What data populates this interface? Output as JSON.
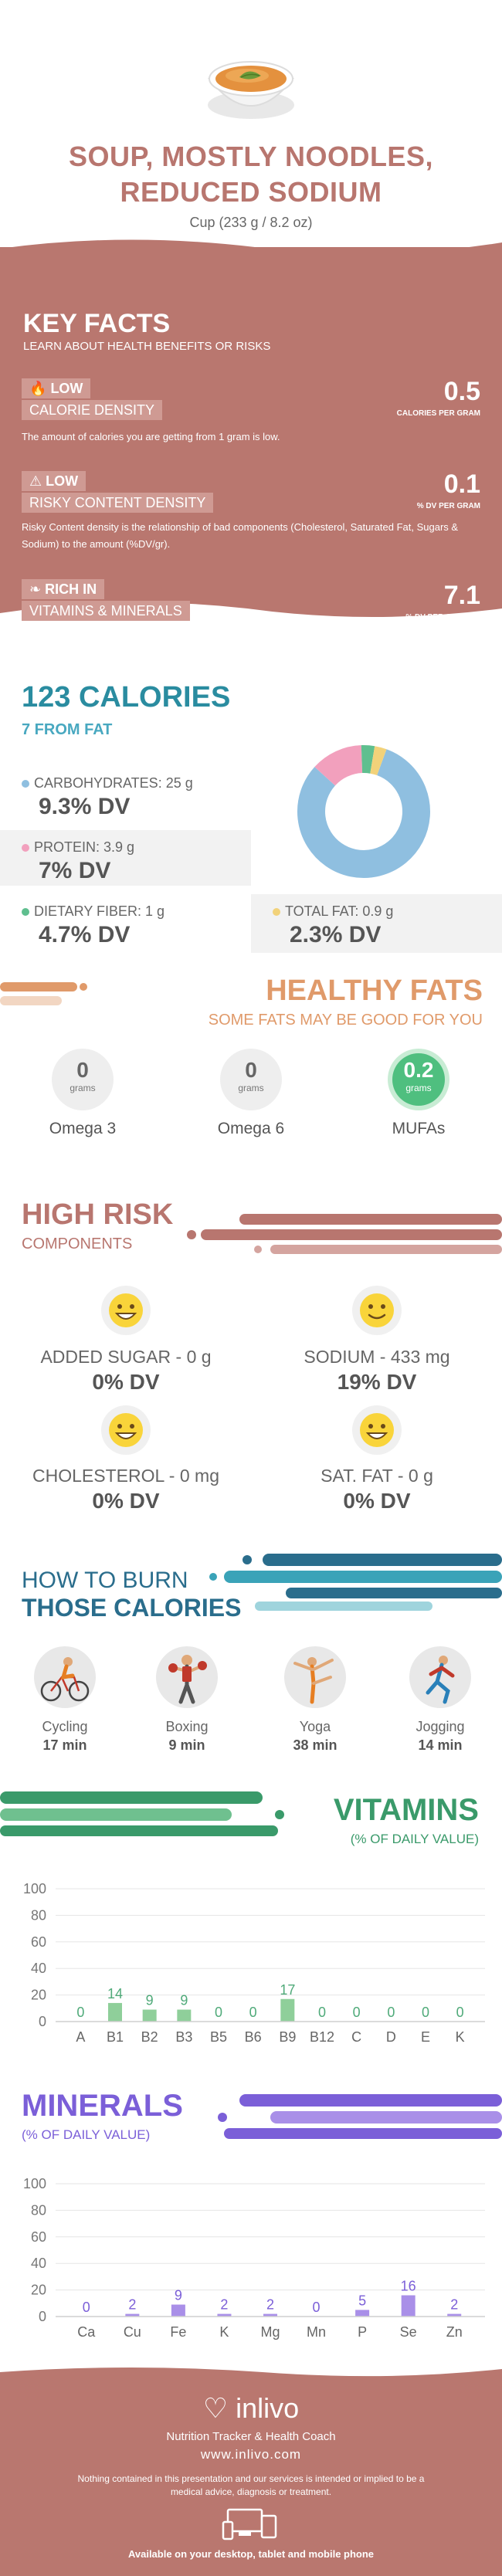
{
  "header": {
    "title_line1": "SOUP, MOSTLY NOODLES,",
    "title_line2": "REDUCED SODIUM",
    "serving": "Cup (233 g / 8.2 oz)"
  },
  "key_facts": {
    "heading": "KEY FACTS",
    "subheading": "LEARN ABOUT HEALTH BENEFITS OR RISKS",
    "items": [
      {
        "icon": "flame-icon",
        "rating": "LOW",
        "label": "CALORIE DENSITY",
        "value": "0.5",
        "unit": "CALORIES PER GRAM",
        "description": "The amount of calories you are getting from 1 gram is low."
      },
      {
        "icon": "warning-icon",
        "rating": "LOW",
        "label": "RISKY CONTENT DENSITY",
        "value": "0.1",
        "unit": "% DV PER GRAM",
        "description": "Risky Content density is the relationship of bad components (Cholesterol, Saturated Fat, Sugars & Sodium) to the amount (%DV/gr)."
      },
      {
        "icon": "leaf-icon",
        "rating": "RICH  IN",
        "label": "VITAMINS & MINERALS",
        "value": "7.1",
        "unit": "% DV PER CALORIE",
        "description": ""
      }
    ]
  },
  "calories": {
    "title": "123 CALORIES",
    "subtitle": "7 FROM FAT",
    "nutrients": [
      {
        "label": "CARBOHYDRATES: 25 g",
        "dv": "9.3% DV",
        "color": "#8fbfe0"
      },
      {
        "label": "PROTEIN: 3.9 g",
        "dv": "7% DV",
        "color": "#f2a0bd"
      },
      {
        "label": "DIETARY FIBER: 1 g",
        "dv": "4.7% DV",
        "color": "#5fbf8f"
      },
      {
        "label": "TOTAL FAT: 0.9 g",
        "dv": "2.3% DV",
        "color": "#f2d27a"
      }
    ]
  },
  "chart_data": [
    {
      "type": "pie",
      "title": "",
      "categories": [
        "Carbohydrates",
        "Protein",
        "Dietary Fiber",
        "Total Fat"
      ],
      "values": [
        25,
        3.9,
        1,
        0.9
      ],
      "colors": [
        "#8fbfe0",
        "#f2a0bd",
        "#5fbf8f",
        "#f2d27a"
      ]
    },
    {
      "type": "bar",
      "title": "VITAMINS",
      "categories": [
        "A",
        "B1",
        "B2",
        "B3",
        "B5",
        "B6",
        "B9",
        "B12",
        "C",
        "D",
        "E",
        "K"
      ],
      "values": [
        0,
        14,
        9,
        9,
        0,
        0,
        17,
        0,
        0,
        0,
        0,
        0
      ],
      "ylim": [
        0,
        100
      ],
      "yticks": [
        0,
        20,
        40,
        60,
        80,
        100
      ],
      "color": "#8fcf9a",
      "label_color": "#4faa79"
    },
    {
      "type": "bar",
      "title": "MINERALS",
      "categories": [
        "Ca",
        "Cu",
        "Fe",
        "K",
        "Mg",
        "Mn",
        "P",
        "Se",
        "Zn"
      ],
      "values": [
        0,
        2,
        9,
        2,
        2,
        0,
        5,
        16,
        2
      ],
      "ylim": [
        0,
        100
      ],
      "yticks": [
        0,
        20,
        40,
        60,
        80,
        100
      ],
      "color": "#a98fe8",
      "label_color": "#7b5fd8"
    }
  ],
  "fats": {
    "title": "HEALTHY FATS",
    "subtitle": "SOME FATS MAY BE GOOD FOR YOU",
    "items": [
      {
        "value": "0",
        "unit": "grams",
        "name": "Omega 3"
      },
      {
        "value": "0",
        "unit": "grams",
        "name": "Omega 6"
      },
      {
        "value": "0.2",
        "unit": "grams",
        "name": "MUFAs"
      }
    ]
  },
  "high_risk": {
    "title": "HIGH RISK",
    "subtitle": "COMPONENTS",
    "items": [
      {
        "label": "ADDED SUGAR - 0 g",
        "dv": "0% DV",
        "icon": "grin-face-icon"
      },
      {
        "label": "SODIUM - 433 mg",
        "dv": "19% DV",
        "icon": "smile-face-icon"
      },
      {
        "label": "CHOLESTEROL - 0 mg",
        "dv": "0% DV",
        "icon": "grin-face-icon"
      },
      {
        "label": "SAT. FAT - 0 g",
        "dv": "0% DV",
        "icon": "grin-face-icon"
      }
    ]
  },
  "burn": {
    "title_line1": "HOW TO BURN",
    "title_line2": "THOSE CALORIES",
    "activities": [
      {
        "name": "Cycling",
        "time": "17 min",
        "icon": "cycling-icon"
      },
      {
        "name": "Boxing",
        "time": "9 min",
        "icon": "boxing-icon"
      },
      {
        "name": "Yoga",
        "time": "38 min",
        "icon": "yoga-icon"
      },
      {
        "name": "Jogging",
        "time": "14 min",
        "icon": "jogging-icon"
      }
    ]
  },
  "vitamins": {
    "title": "VITAMINS",
    "subtitle": "(% OF DAILY VALUE)"
  },
  "minerals": {
    "title": "MINERALS",
    "subtitle": "(% OF DAILY VALUE)"
  },
  "footer": {
    "brand": "inlivo",
    "tagline": "Nutrition Tracker & Health Coach",
    "site": "www.inlivo.com",
    "disclaimer": "Nothing contained in this presentation and our services is intended or implied to be a medical advice, diagnosis or treatment.",
    "devices": "Available on your desktop, tablet and mobile phone"
  }
}
